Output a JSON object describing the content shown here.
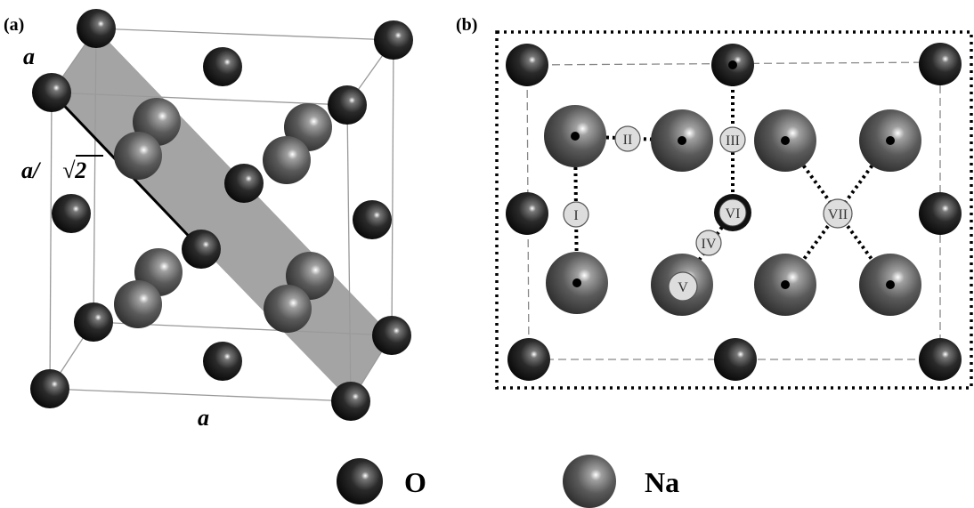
{
  "panel_a": {
    "label": "(a)",
    "edge_label_top": "a",
    "edge_label_bottom": "a",
    "diagonal_label_prefix": "a/",
    "diagonal_label_root": "√2"
  },
  "panel_b": {
    "label": "(b)",
    "site_labels": [
      "I",
      "II",
      "III",
      "IV",
      "V",
      "VI",
      "VII"
    ]
  },
  "legend": {
    "o_label": "O",
    "na_label": "Na"
  },
  "colors": {
    "oxygen": "#1a1a1a",
    "sodium": "#555555",
    "plane": "#9a9a9a",
    "site_fill": "#dddddd"
  }
}
